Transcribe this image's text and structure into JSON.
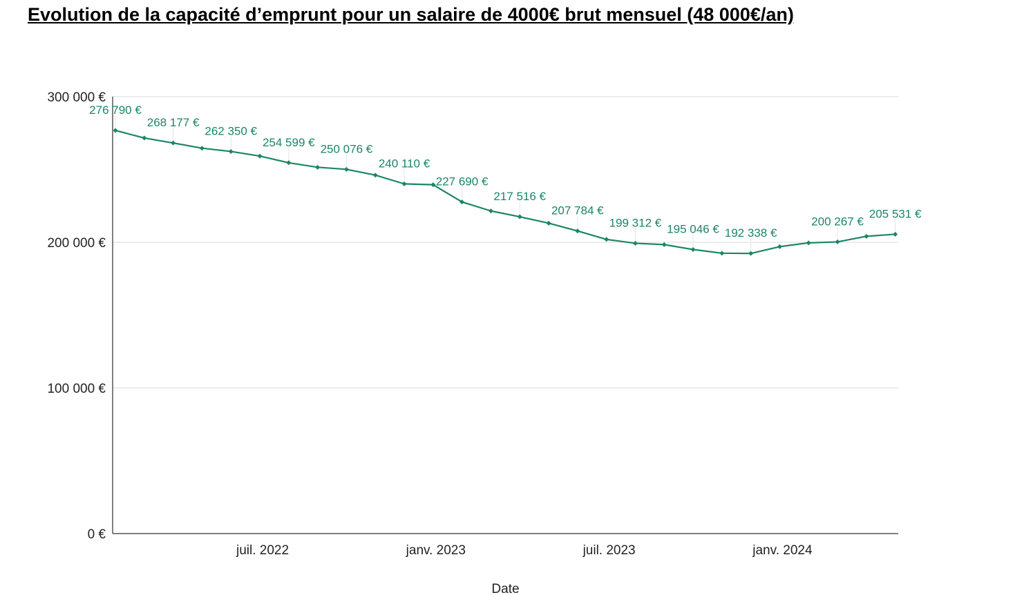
{
  "chart_data": {
    "type": "line",
    "title": "Evolution de la capacité d’emprunt pour un salaire de 4000€ brut mensuel (48 000€/an)",
    "xlabel": "Date",
    "ylabel": "",
    "ylim": [
      0,
      300000
    ],
    "yticks": [
      {
        "value": 0,
        "label": "0 €"
      },
      {
        "value": 100000,
        "label": "100 000 €"
      },
      {
        "value": 200000,
        "label": "200 000 €"
      },
      {
        "value": 300000,
        "label": "300 000 €"
      }
    ],
    "xticks": [
      {
        "date": "2022-07",
        "label": "juil. 2022"
      },
      {
        "date": "2023-01",
        "label": "janv. 2023"
      },
      {
        "date": "2023-07",
        "label": "juil. 2023"
      },
      {
        "date": "2024-01",
        "label": "janv. 2024"
      }
    ],
    "xlim": [
      "2022-02",
      "2024-05"
    ],
    "grid": true,
    "color": "#1a8566",
    "x": [
      "2022-02",
      "2022-03",
      "2022-04",
      "2022-05",
      "2022-06",
      "2022-07",
      "2022-08",
      "2022-09",
      "2022-10",
      "2022-11",
      "2022-12",
      "2023-01",
      "2023-02",
      "2023-03",
      "2023-04",
      "2023-05",
      "2023-06",
      "2023-07",
      "2023-08",
      "2023-09",
      "2023-10",
      "2023-11",
      "2023-12",
      "2024-01",
      "2024-02",
      "2024-03",
      "2024-04",
      "2024-05"
    ],
    "values": [
      276790,
      271600,
      268177,
      264600,
      262350,
      259200,
      254599,
      251500,
      250076,
      246100,
      240110,
      239500,
      227690,
      221500,
      217516,
      213100,
      207784,
      202000,
      199312,
      198400,
      195046,
      192500,
      192338,
      197000,
      199600,
      200267,
      204100,
      205531
    ],
    "data_labels": [
      {
        "index": 0,
        "label": "276 790 €"
      },
      {
        "index": 2,
        "label": "268 177 €"
      },
      {
        "index": 4,
        "label": "262 350 €"
      },
      {
        "index": 6,
        "label": "254 599 €"
      },
      {
        "index": 8,
        "label": "250 076 €"
      },
      {
        "index": 10,
        "label": "240 110 €"
      },
      {
        "index": 12,
        "label": "227 690 €"
      },
      {
        "index": 14,
        "label": "217 516 €"
      },
      {
        "index": 16,
        "label": "207 784 €"
      },
      {
        "index": 18,
        "label": "199 312 €"
      },
      {
        "index": 20,
        "label": "195 046 €"
      },
      {
        "index": 22,
        "label": "192 338 €"
      },
      {
        "index": 25,
        "label": "200 267 €"
      },
      {
        "index": 27,
        "label": "205 531 €"
      }
    ]
  }
}
